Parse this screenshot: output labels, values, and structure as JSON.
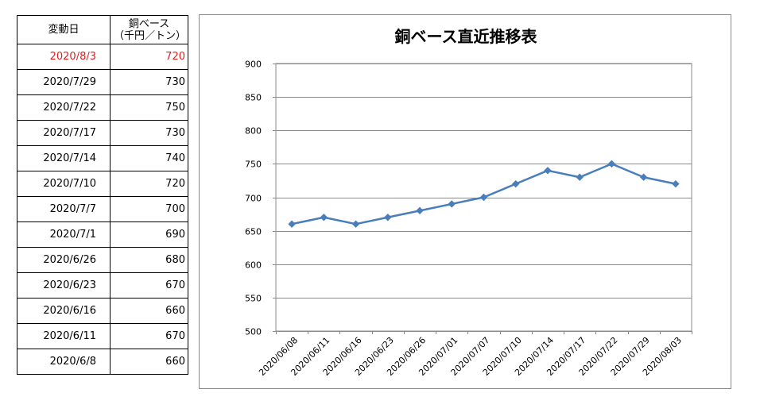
{
  "table": {
    "header_date": "変動日",
    "header_price_line1": "銅ベース",
    "header_price_line2": "（千円／トン）",
    "rows": [
      {
        "date": "2020/8/3",
        "price": "720",
        "highlight": true
      },
      {
        "date": "2020/7/29",
        "price": "730",
        "highlight": false
      },
      {
        "date": "2020/7/22",
        "price": "750",
        "highlight": false
      },
      {
        "date": "2020/7/17",
        "price": "730",
        "highlight": false
      },
      {
        "date": "2020/7/14",
        "price": "740",
        "highlight": false
      },
      {
        "date": "2020/7/10",
        "price": "720",
        "highlight": false
      },
      {
        "date": "2020/7/7",
        "price": "700",
        "highlight": false
      },
      {
        "date": "2020/7/1",
        "price": "690",
        "highlight": false
      },
      {
        "date": "2020/6/26",
        "price": "680",
        "highlight": false
      },
      {
        "date": "2020/6/23",
        "price": "670",
        "highlight": false
      },
      {
        "date": "2020/6/16",
        "price": "660",
        "highlight": false
      },
      {
        "date": "2020/6/11",
        "price": "670",
        "highlight": false
      },
      {
        "date": "2020/6/8",
        "price": "660",
        "highlight": false
      }
    ],
    "highlight_color": "#e02020"
  },
  "chart_data": {
    "type": "line",
    "title": "銅ベース直近推移表",
    "categories": [
      "2020/06/08",
      "2020/06/11",
      "2020/06/16",
      "2020/06/23",
      "2020/06/26",
      "2020/07/01",
      "2020/07/07",
      "2020/07/10",
      "2020/07/14",
      "2020/07/17",
      "2020/07/22",
      "2020/07/29",
      "2020/08/03"
    ],
    "values": [
      660,
      670,
      660,
      670,
      680,
      690,
      700,
      720,
      740,
      730,
      750,
      730,
      720
    ],
    "ylim": [
      500,
      900
    ],
    "yticks": [
      "500",
      "550",
      "600",
      "650",
      "700",
      "750",
      "800",
      "850",
      "900"
    ],
    "grid": true,
    "marker": "diamond",
    "line_color": "#4a7ebb",
    "xlabel": "",
    "ylabel": ""
  }
}
